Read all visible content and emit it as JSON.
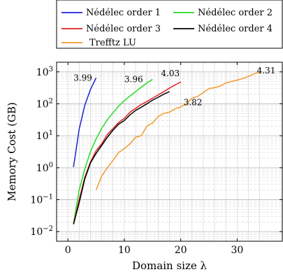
{
  "chart_data": {
    "type": "line",
    "xlabel": "Domain size λ",
    "ylabel": "Memory Cost (GB)",
    "xlim": [
      -2,
      38
    ],
    "ylim": [
      0.005,
      2000
    ],
    "yscale": "log",
    "grid": true,
    "legend_position": "top",
    "x_ticks": [
      0,
      10,
      20,
      30
    ],
    "x_tick_labels": [
      "0",
      "10",
      "20",
      "30"
    ],
    "y_ticks": [
      0.01,
      0.1,
      1,
      10,
      100,
      1000
    ],
    "y_tick_labels": [
      "10",
      "10",
      "10",
      "10",
      "10",
      "10"
    ],
    "y_tick_exponents": [
      "−2",
      "−1",
      "0",
      "1",
      "2",
      "3"
    ],
    "series": [
      {
        "name": "Nédélec order 1",
        "color": "#1f1fd6",
        "x": [
          1,
          2,
          3,
          4,
          5
        ],
        "y": [
          1.05,
          16,
          90,
          280,
          650
        ]
      },
      {
        "name": "Nédélec order 2",
        "color": "#22dd22",
        "x": [
          1,
          2,
          3,
          4,
          5,
          6,
          7,
          8,
          9,
          10,
          11,
          12,
          13,
          14,
          15
        ],
        "y": [
          0.018,
          0.2,
          0.9,
          3.2,
          8,
          17,
          32,
          52,
          85,
          125,
          175,
          240,
          330,
          450,
          580
        ]
      },
      {
        "name": "Nédélec order 3",
        "color": "#e02020",
        "x": [
          1,
          2,
          3,
          4,
          5,
          6,
          7,
          8,
          9,
          10,
          11,
          12,
          13,
          14,
          15,
          16,
          17,
          18,
          19,
          20
        ],
        "y": [
          0.017,
          0.1,
          0.5,
          1.5,
          3.4,
          5.6,
          11,
          17,
          26,
          35,
          55,
          72,
          95,
          118,
          150,
          190,
          240,
          310,
          390,
          480
        ]
      },
      {
        "name": "Nédélec order 4",
        "color": "#000000",
        "x": [
          1,
          2,
          3,
          4,
          5,
          6,
          7,
          8,
          9,
          10,
          11,
          12,
          13,
          14,
          15,
          16,
          17,
          18
        ],
        "y": [
          0.017,
          0.08,
          0.45,
          1.4,
          2.8,
          5,
          9,
          15,
          23,
          30,
          45,
          62,
          78,
          100,
          130,
          160,
          200,
          240
        ]
      },
      {
        "name": "Trefftz LU",
        "color": "#f39a2e",
        "x": [
          5,
          6,
          7,
          8,
          9,
          10,
          11,
          12,
          13,
          14,
          15,
          16,
          17,
          18,
          19,
          20,
          21,
          22,
          23,
          24,
          25,
          26,
          27,
          28,
          29,
          30,
          31,
          32,
          33,
          34
        ],
        "y": [
          0.2,
          0.55,
          1,
          1.7,
          3,
          4,
          5.5,
          9,
          10,
          20,
          25,
          40,
          50,
          55,
          70,
          80,
          100,
          150,
          170,
          225,
          300,
          320,
          360,
          450,
          500,
          550,
          620,
          720,
          870,
          1000
        ]
      }
    ],
    "annotations": [
      {
        "text": "3.99",
        "x": 1.0,
        "y": 650
      },
      {
        "text": "3.96",
        "x": 10.0,
        "y": 580
      },
      {
        "text": "4.03",
        "x": 16.5,
        "y": 900
      },
      {
        "text": "3.82",
        "x": 20.5,
        "y": 110
      },
      {
        "text": "4.31",
        "x": 33.5,
        "y": 1100
      }
    ]
  }
}
